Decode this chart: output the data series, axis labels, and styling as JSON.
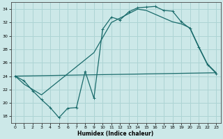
{
  "xlabel": "Humidex (Indice chaleur)",
  "background_color": "#cce8e8",
  "grid_color": "#add4d4",
  "line_color": "#1a6b6b",
  "xlim": [
    -0.5,
    23.5
  ],
  "ylim": [
    17.0,
    35.0
  ],
  "yticks": [
    18,
    20,
    22,
    24,
    26,
    28,
    30,
    32,
    34
  ],
  "xticks": [
    0,
    1,
    2,
    3,
    4,
    5,
    6,
    7,
    8,
    9,
    10,
    11,
    12,
    13,
    14,
    15,
    16,
    17,
    18,
    19,
    20,
    21,
    22,
    23
  ],
  "curve1_x": [
    0,
    1,
    2,
    3,
    4,
    5,
    6,
    7,
    8,
    9,
    10,
    11,
    12,
    13,
    14,
    15,
    16,
    17,
    18,
    19,
    20,
    21,
    22,
    23
  ],
  "curve1_y": [
    24.0,
    23.3,
    21.8,
    20.5,
    19.3,
    17.8,
    19.2,
    19.3,
    24.7,
    20.7,
    31.0,
    32.8,
    32.4,
    33.6,
    34.2,
    34.3,
    34.4,
    33.8,
    33.7,
    32.1,
    31.1,
    28.3,
    25.7,
    24.4
  ],
  "curve2_x": [
    0,
    23
  ],
  "curve2_y": [
    24.0,
    24.5
  ],
  "curve3_x": [
    0,
    1,
    2,
    3,
    9,
    11,
    14,
    15,
    18,
    19,
    20,
    21,
    22,
    23
  ],
  "curve3_y": [
    24.0,
    22.8,
    22.0,
    21.2,
    27.5,
    32.0,
    34.0,
    33.8,
    32.1,
    31.8,
    31.2,
    28.4,
    25.8,
    24.5
  ]
}
